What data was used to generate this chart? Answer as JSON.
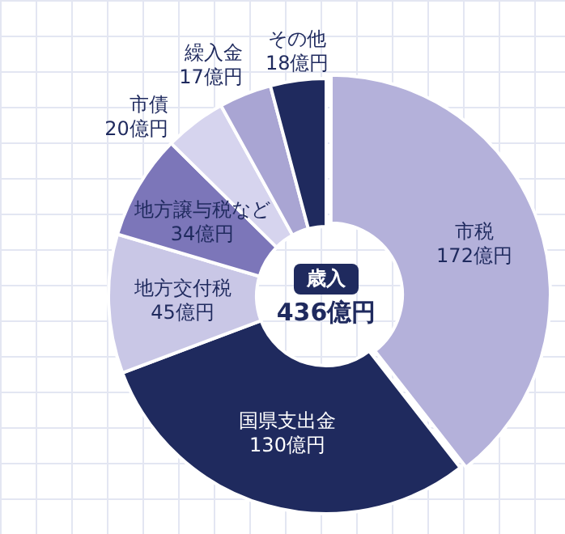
{
  "chart_data": {
    "type": "donut",
    "categories": [
      "市税",
      "国県支出金",
      "地方交付税",
      "地方譲与税など",
      "市債",
      "繰入金",
      "その他"
    ],
    "values": [
      172,
      130,
      45,
      34,
      20,
      17,
      18
    ],
    "value_labels": [
      "172億円",
      "130億円",
      "45億円",
      "34億円",
      "20億円",
      "17億円",
      "18億円"
    ],
    "colors": [
      "#b4b1da",
      "#1f2a5e",
      "#c9c7e6",
      "#7c76b9",
      "#d6d4ee",
      "#a9a5d3",
      "#1f2a5e"
    ],
    "annotations": [
      "歳入",
      "436億円"
    ],
    "legend": false
  }
}
